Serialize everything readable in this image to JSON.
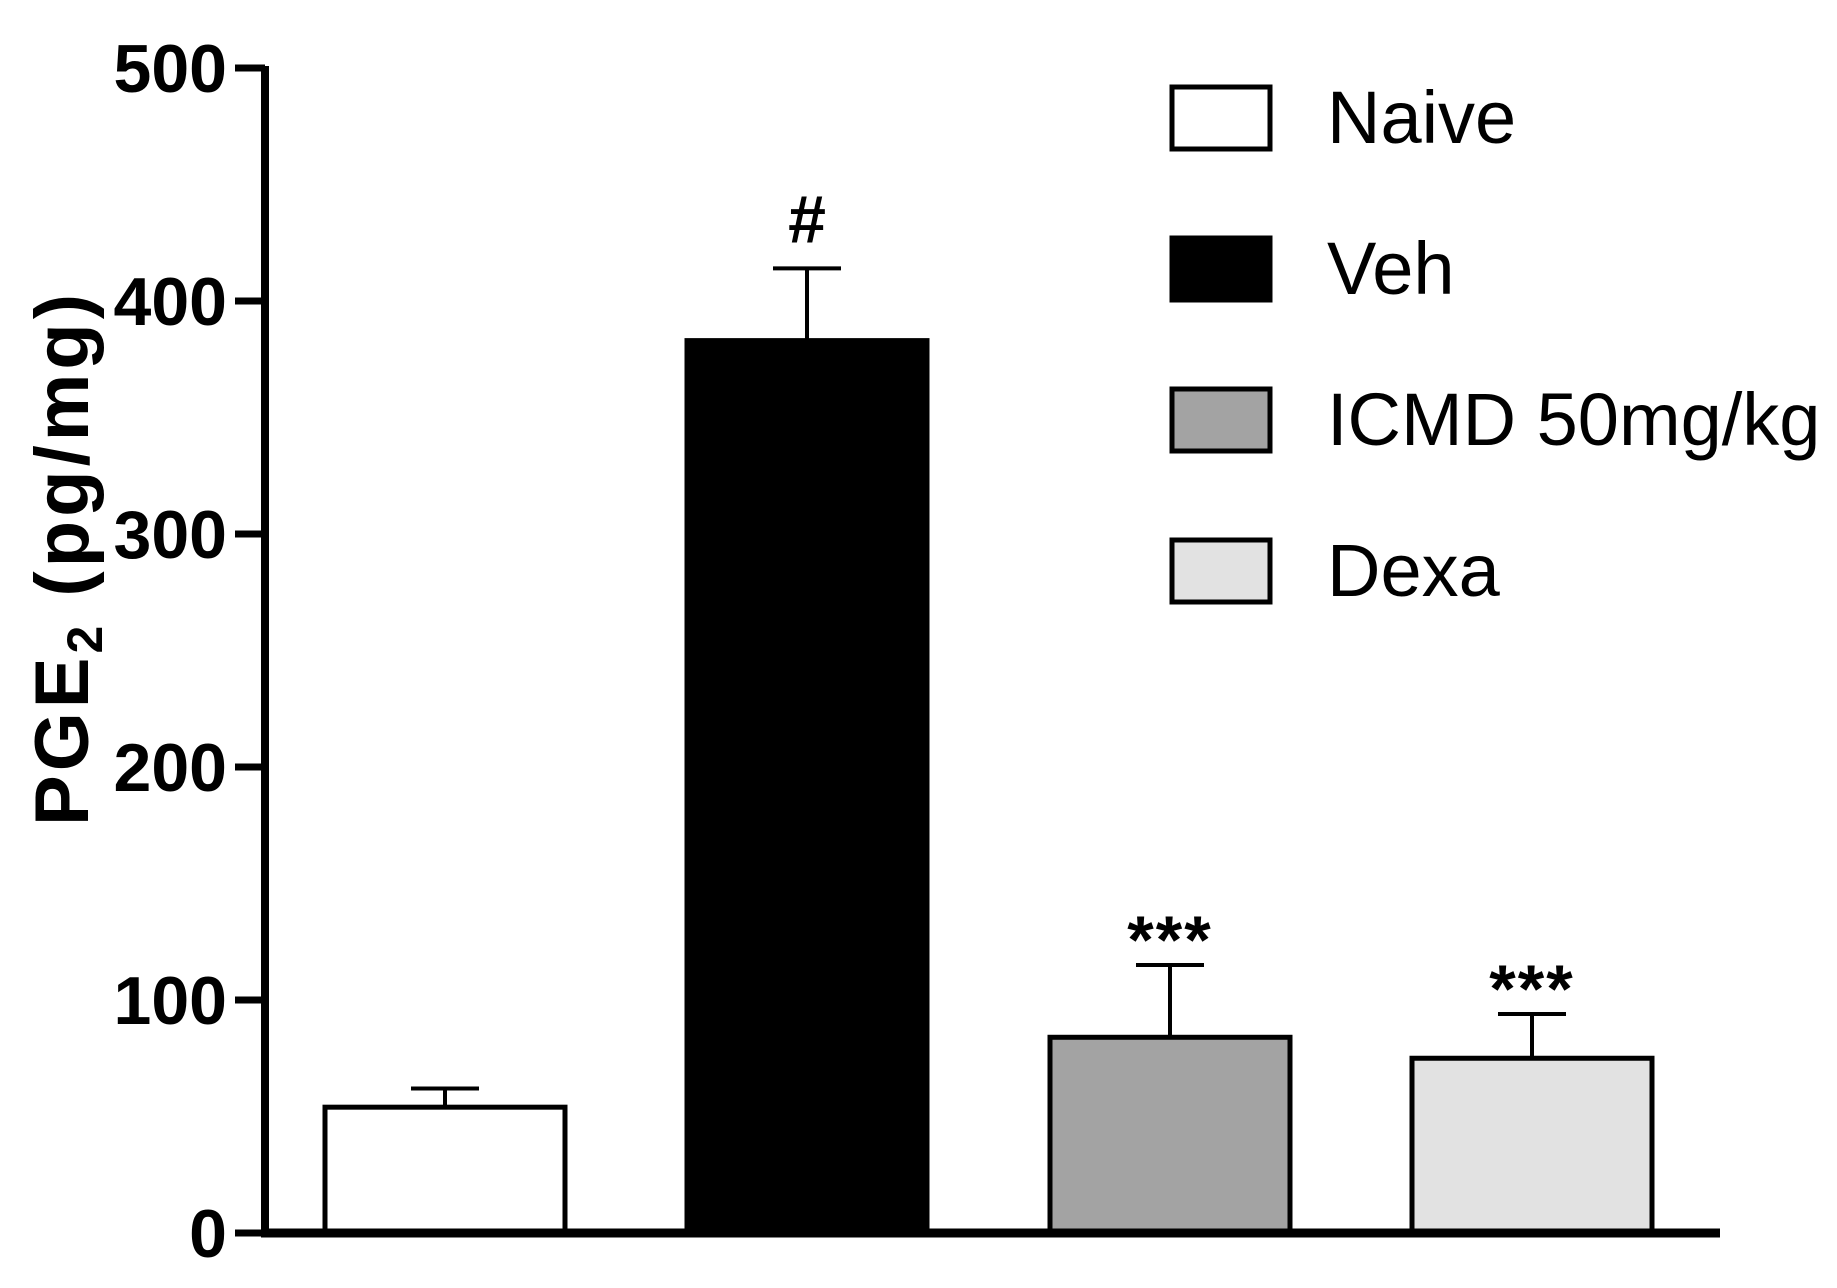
{
  "chart_data": {
    "type": "bar",
    "ylabel_main": "PGE",
    "ylabel_sub": "2",
    "ylabel_units": " (pg/mg)",
    "ylim": [
      0,
      500
    ],
    "yticks": [
      0,
      100,
      200,
      300,
      400,
      500
    ],
    "categories": [
      "Naive",
      "Veh",
      "ICMD 50mg/kg",
      "Dexa"
    ],
    "values": [
      54,
      383,
      84,
      75
    ],
    "errors": [
      8,
      31,
      31,
      19
    ],
    "significance": [
      "",
      "#",
      "***",
      "***"
    ],
    "colors": [
      "#ffffff",
      "#000000",
      "#a3a3a3",
      "#e2e2e2"
    ],
    "legend": {
      "placement": "top-right",
      "items": [
        {
          "label": "Naive",
          "color": "#ffffff"
        },
        {
          "label": "Veh",
          "color": "#000000"
        },
        {
          "label": "ICMD 50mg/kg",
          "color": "#a3a3a3"
        },
        {
          "label": "Dexa",
          "color": "#e2e2e2"
        }
      ]
    }
  }
}
